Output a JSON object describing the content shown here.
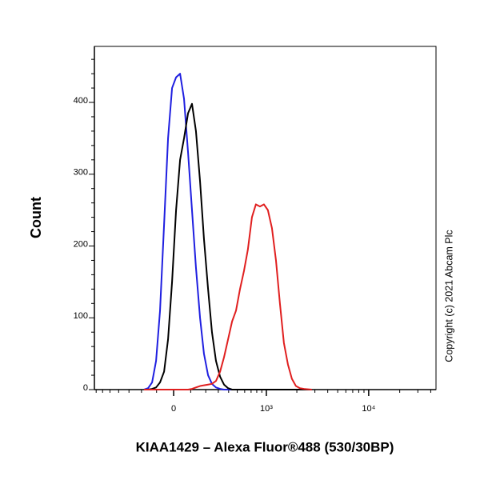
{
  "chart_data": {
    "type": "line",
    "y_label": "Count",
    "x_label": "KIAA1429 – Alexa Fluor®488 (530/30BP)",
    "annotation": "Copyright (c) 2021 Abcam Plc",
    "xscale": "biexponential",
    "x": [
      -182,
      -154,
      -128,
      -103,
      -79,
      -55,
      -32,
      -9,
      14,
      37,
      60,
      84,
      108,
      133,
      160,
      187,
      217,
      247,
      280,
      316,
      353,
      394,
      438,
      484,
      535,
      589,
      648,
      714,
      784,
      862,
      945,
      1036,
      1137,
      1247,
      1364,
      1493,
      1636,
      1789,
      1958,
      2143,
      2346,
      2806
    ],
    "series": [
      {
        "color": "#1f1fe0",
        "values": [
          0,
          2,
          10,
          40,
          110,
          230,
          350,
          420,
          435,
          440,
          405,
          330,
          250,
          170,
          100,
          50,
          20,
          8,
          3,
          1,
          0,
          0,
          0,
          0,
          0,
          0,
          0,
          0,
          0,
          0,
          0,
          0,
          0,
          0,
          0,
          0,
          0,
          0,
          0,
          0,
          0,
          0
        ]
      },
      {
        "color": "#000000",
        "values": [
          0,
          0,
          1,
          3,
          10,
          25,
          70,
          150,
          250,
          320,
          350,
          385,
          398,
          360,
          290,
          210,
          140,
          80,
          40,
          18,
          7,
          2,
          0,
          0,
          0,
          0,
          0,
          0,
          0,
          0,
          0,
          0,
          0,
          0,
          0,
          0,
          0,
          0,
          0,
          0,
          0,
          0
        ]
      },
      {
        "color": "#e01f1f",
        "values": [
          0,
          0,
          0,
          0,
          0,
          0,
          0,
          0,
          0,
          0,
          0,
          0,
          1,
          3,
          5,
          6,
          7,
          8,
          12,
          25,
          45,
          70,
          95,
          110,
          140,
          165,
          195,
          240,
          258,
          255,
          258,
          250,
          225,
          180,
          120,
          65,
          35,
          15,
          5,
          2,
          1,
          0
        ]
      }
    ],
    "xlim": [
      -730,
      45000
    ],
    "ylim": [
      0,
      478
    ],
    "xticks": [
      0,
      {
        "value": 1000,
        "label": "10³"
      },
      {
        "value": 10000,
        "label": "10⁴"
      }
    ],
    "xminorticks": [
      -700,
      -600,
      -500,
      -400,
      -300,
      -200,
      -100,
      100,
      200,
      300,
      400,
      500,
      600,
      700,
      800,
      900,
      2000,
      3000,
      4000,
      5000,
      6000,
      7000,
      8000,
      9000,
      20000,
      30000,
      40000
    ],
    "yticks": [
      0,
      100,
      200,
      300,
      400
    ],
    "yminorticks": [
      20,
      40,
      60,
      80,
      120,
      140,
      160,
      180,
      220,
      240,
      260,
      280,
      320,
      340,
      360,
      380,
      420,
      440,
      460
    ],
    "grid": false
  }
}
